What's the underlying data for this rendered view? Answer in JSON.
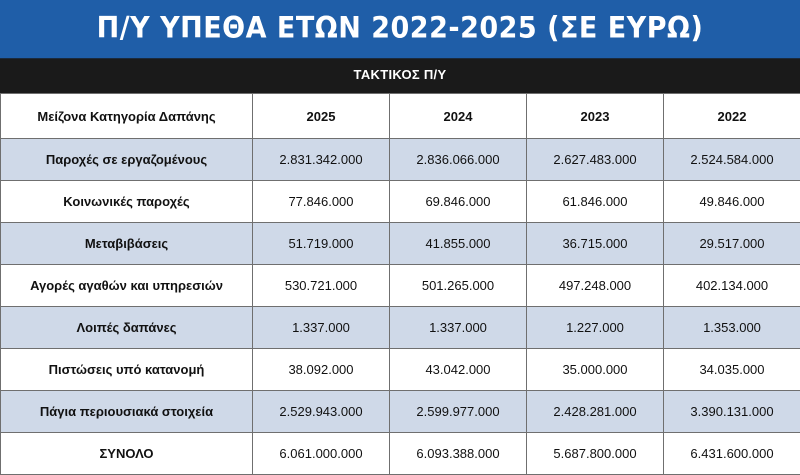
{
  "title": "Π/Υ ΥΠΕΘΑ ΕΤΩΝ 2022-2025 (ΣΕ ΕΥΡΩ)",
  "subtitle": "ΤΑΚΤΙΚΟΣ Π/Υ",
  "chart_data": {
    "type": "table",
    "title": "Π/Υ ΥΠΕΘΑ ΕΤΩΝ 2022-2025 (ΣΕ ΕΥΡΩ)",
    "subtitle": "ΤΑΚΤΙΚΟΣ Π/Υ",
    "columns": [
      "Μείζονα Κατηγορία Δαπάνης",
      "2025",
      "2024",
      "2023",
      "2022"
    ],
    "rows": [
      {
        "category": "Παροχές σε εργαζομένους",
        "values": [
          "2.831.342.000",
          "2.836.066.000",
          "2.627.483.000",
          "2.524.584.000"
        ]
      },
      {
        "category": "Κοινωνικές παροχές",
        "values": [
          "77.846.000",
          "69.846.000",
          "61.846.000",
          "49.846.000"
        ]
      },
      {
        "category": "Μεταβιβάσεις",
        "values": [
          "51.719.000",
          "41.855.000",
          "36.715.000",
          "29.517.000"
        ]
      },
      {
        "category": "Αγορές αγαθών και υπηρεσιών",
        "values": [
          "530.721.000",
          "501.265.000",
          "497.248.000",
          "402.134.000"
        ]
      },
      {
        "category": "Λοιπές δαπάνες",
        "values": [
          "1.337.000",
          "1.337.000",
          "1.227.000",
          "1.353.000"
        ]
      },
      {
        "category": "Πιστώσεις υπό κατανομή",
        "values": [
          "38.092.000",
          "43.042.000",
          "35.000.000",
          "34.035.000"
        ]
      },
      {
        "category": "Πάγια περιουσιακά στοιχεία",
        "values": [
          "2.529.943.000",
          "2.599.977.000",
          "2.428.281.000",
          "3.390.131.000"
        ]
      },
      {
        "category": "ΣΥΝΟΛΟ",
        "values": [
          "6.061.000.000",
          "6.093.388.000",
          "5.687.800.000",
          "6.431.600.000"
        ]
      }
    ]
  },
  "colors": {
    "title_background": "#1f5ea8",
    "subtitle_background": "#1a1a1a",
    "shaded_row": "#cfd9e8",
    "border": "#6f6f6f"
  }
}
